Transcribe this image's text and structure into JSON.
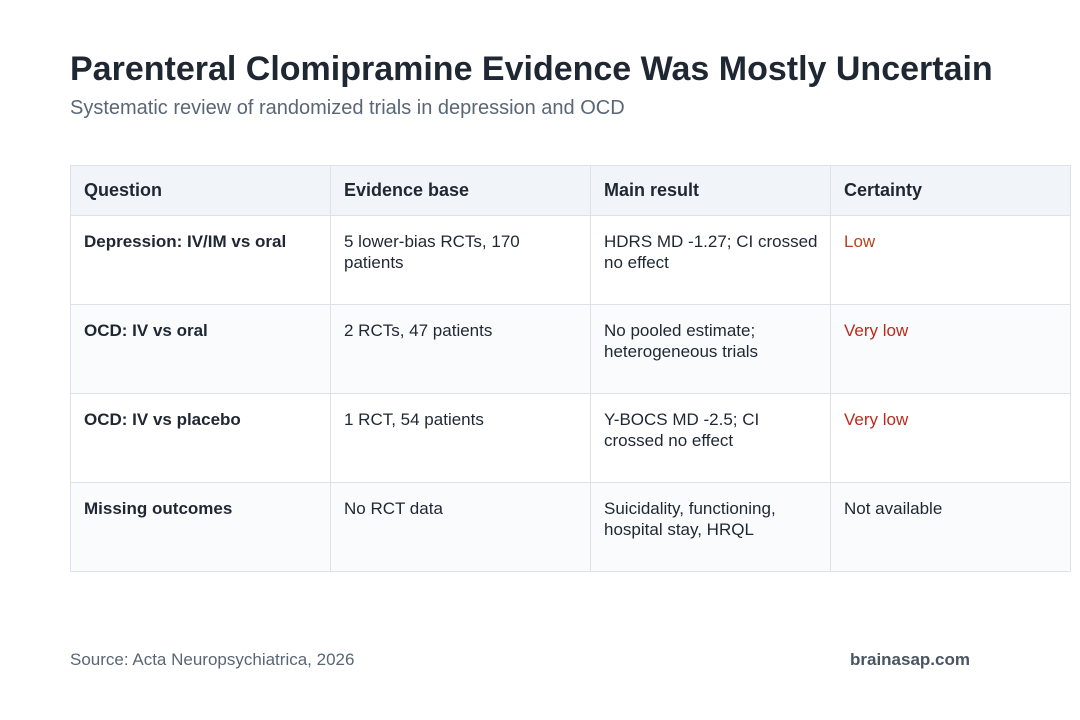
{
  "title": "Parenteral Clomipramine Evidence Was Mostly Uncertain",
  "subtitle": "Systematic review of randomized trials in depression and OCD",
  "colors": {
    "certainty_low": "#b5431a",
    "certainty_very_low": "#bc2a1c",
    "header_background": "#f1f4f8"
  },
  "table": {
    "headers": [
      "Question",
      "Evidence base",
      "Main result",
      "Certainty"
    ],
    "rows": [
      {
        "question": "Depression: IV/IM vs oral",
        "evidence": "5 lower-bias RCTs, 170 patients",
        "result": "HDRS MD -1.27; CI crossed no effect",
        "certainty": "Low"
      },
      {
        "question": "OCD: IV vs oral",
        "evidence": "2 RCTs, 47 patients",
        "result": "No pooled estimate; heterogeneous trials",
        "certainty": "Very low"
      },
      {
        "question": "OCD: IV vs placebo",
        "evidence": "1 RCT, 54 patients",
        "result": "Y-BOCS MD -2.5; CI crossed no effect",
        "certainty": "Very low"
      },
      {
        "question": "Missing outcomes",
        "evidence": "No RCT data",
        "result": "Suicidality, functioning, hospital stay, HRQL",
        "certainty": "Not available"
      }
    ]
  },
  "footer": {
    "source": "Source: Acta Neuropsychiatrica, 2026",
    "brand": "brainasap.com"
  }
}
